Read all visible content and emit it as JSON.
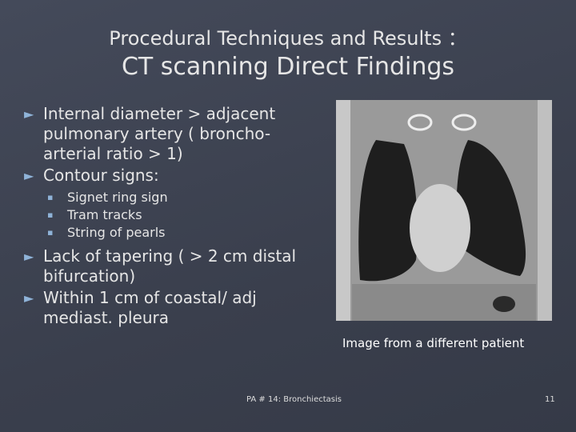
{
  "header": {
    "title": "Procedural Techniques and Results ：",
    "subtitle": "CT scanning Direct Findings"
  },
  "bullets": [
    {
      "text": "Internal diameter > adjacent pulmonary artery ( broncho-arterial ratio > 1)"
    },
    {
      "text": "Contour signs:",
      "subitems": [
        "Signet ring sign",
        "Tram tracks",
        "String of pearls"
      ]
    },
    {
      "text": "Lack of tapering ( > 2 cm distal bifurcation)"
    },
    {
      "text": "Within 1 cm of coastal/ adj mediast. pleura"
    }
  ],
  "image": {
    "caption": "Image from a different patient"
  },
  "footer": {
    "text": "PA # 14: Bronchiectasis",
    "page": "11"
  }
}
